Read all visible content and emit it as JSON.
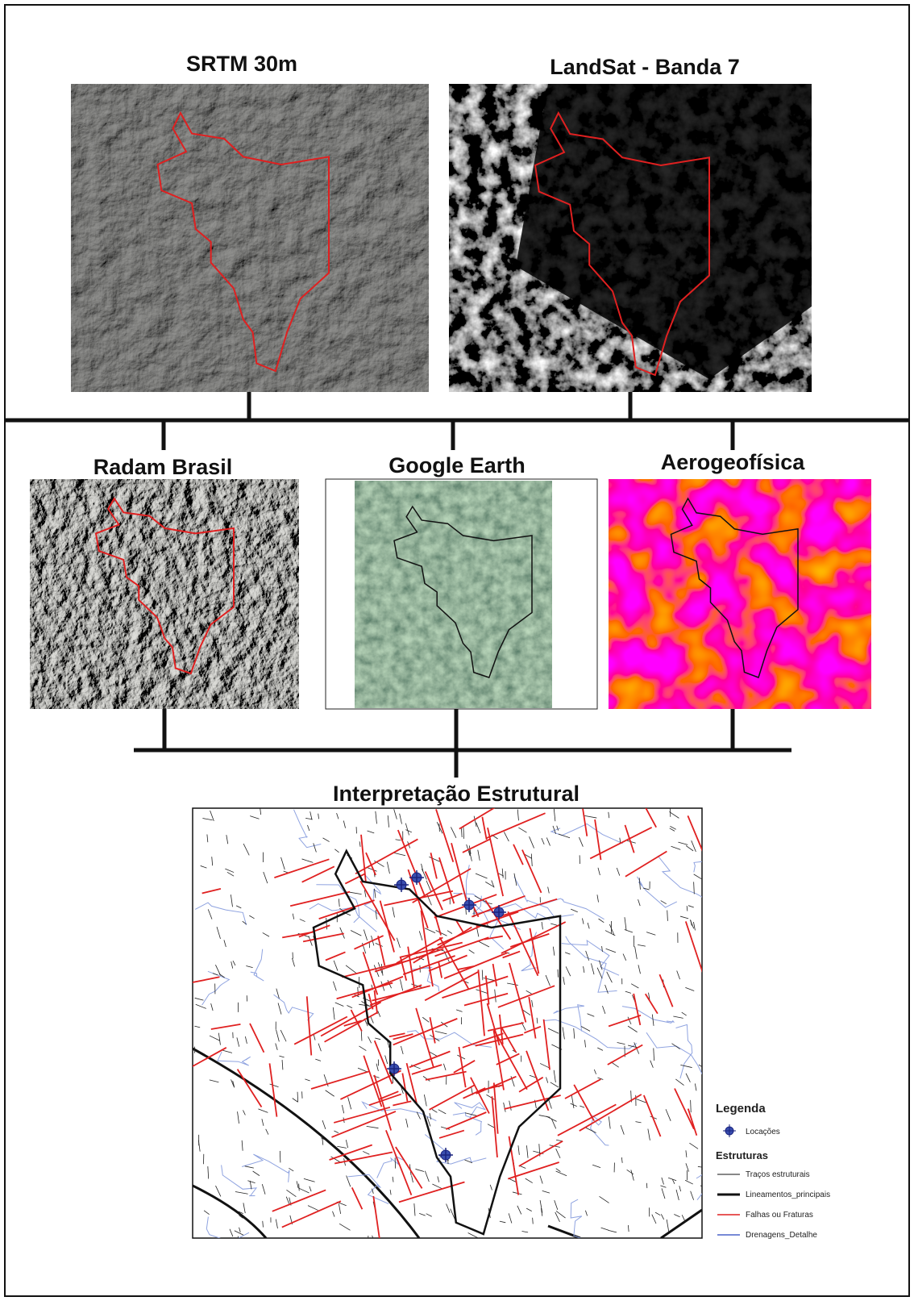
{
  "panels": [
    {
      "title": "SRTM 30m"
    },
    {
      "title": "LandSat - Banda 7"
    },
    {
      "title": "Radam Brasil"
    },
    {
      "title": "Google Earth"
    },
    {
      "title": "Aerogeofísica"
    },
    {
      "title": "Interpretação Estrutural"
    }
  ],
  "legend": {
    "title": "Legenda",
    "points": "Locações",
    "subtitle": "Estruturas",
    "items": [
      "Traços estruturais",
      "Lineamentos_principais",
      "Falhas ou Fraturas",
      "Drenagens_Detalhe"
    ]
  }
}
